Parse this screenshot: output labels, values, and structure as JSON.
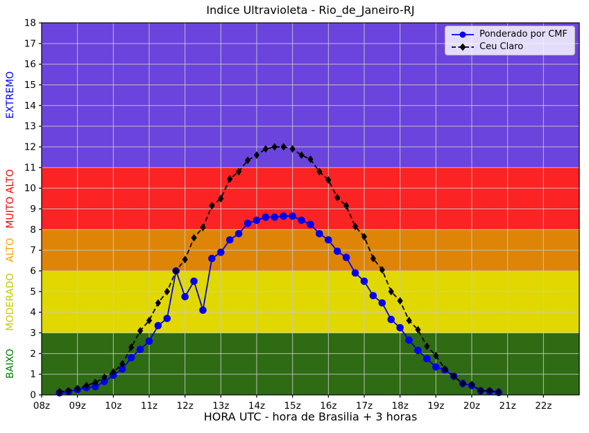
{
  "title": "Indice Ultravioleta - Rio_de_Janeiro-RJ",
  "xlabel": "HORA UTC - hora de Brasilia + 3 horas",
  "legend": {
    "items": [
      {
        "label": "Ponderado por CMF",
        "color": "#0000ee",
        "marker": "circle",
        "linestyle": "solid"
      },
      {
        "label": "Ceu Claro",
        "color": "#000000",
        "marker": "diamond",
        "linestyle": "dashed"
      }
    ]
  },
  "bands": [
    {
      "label": "BAIXO",
      "from": 0,
      "to": 3,
      "fill": "#2e6b13",
      "label_color": "#008000"
    },
    {
      "label": "MODERADO",
      "from": 3,
      "to": 6,
      "fill": "#e0d800",
      "label_color": "#c8c800"
    },
    {
      "label": "ALTO",
      "from": 6,
      "to": 8,
      "fill": "#de8508",
      "label_color": "#ff9e00"
    },
    {
      "label": "MUITO ALTO",
      "from": 8,
      "to": 11,
      "fill": "#fb2323",
      "label_color": "#ff0000"
    },
    {
      "label": "EXTREMO",
      "from": 11,
      "to": 18,
      "fill": "#6b44dd",
      "label_color": "#0000ff"
    }
  ],
  "grid_color": "#c9c9c9",
  "chart_data": {
    "type": "line",
    "title": "Indice Ultravioleta - Rio_de_Janeiro-RJ",
    "xlabel": "HORA UTC - hora de Brasilia + 3 horas",
    "ylabel": "",
    "xlim": [
      8,
      23
    ],
    "ylim": [
      0,
      18
    ],
    "grid": true,
    "legend_position": "upper right",
    "x_tick_labels": [
      "08z",
      "09z",
      "10z",
      "11z",
      "12z",
      "13z",
      "14z",
      "15z",
      "16z",
      "17z",
      "18z",
      "19z",
      "20z",
      "21z",
      "22z"
    ],
    "x_tick_hours": [
      8,
      9,
      10,
      11,
      12,
      13,
      14,
      15,
      16,
      17,
      18,
      19,
      20,
      21,
      22
    ],
    "y_ticks": [
      0,
      1,
      2,
      3,
      4,
      5,
      6,
      7,
      8,
      9,
      10,
      11,
      12,
      13,
      14,
      15,
      16,
      17,
      18
    ],
    "x": [
      8.5,
      8.75,
      9.0,
      9.25,
      9.5,
      9.75,
      10.0,
      10.25,
      10.5,
      10.75,
      11.0,
      11.25,
      11.5,
      11.75,
      12.0,
      12.25,
      12.5,
      12.75,
      13.0,
      13.25,
      13.5,
      13.75,
      14.0,
      14.25,
      14.5,
      14.75,
      15.0,
      15.25,
      15.5,
      15.75,
      16.0,
      16.25,
      16.5,
      16.75,
      17.0,
      17.25,
      17.5,
      17.75,
      18.0,
      18.25,
      18.5,
      18.75,
      19.0,
      19.25,
      19.5,
      19.75,
      20.0,
      20.25,
      20.5,
      20.75
    ],
    "series": [
      {
        "name": "Ponderado por CMF",
        "color": "#0000ee",
        "marker": "circle",
        "linestyle": "solid",
        "values": [
          0.1,
          0.15,
          0.25,
          0.35,
          0.4,
          0.65,
          0.95,
          1.25,
          1.8,
          2.2,
          2.6,
          3.35,
          3.7,
          6.0,
          4.75,
          5.5,
          4.1,
          6.6,
          6.9,
          7.5,
          7.8,
          8.3,
          8.45,
          8.6,
          8.6,
          8.65,
          8.65,
          8.45,
          8.25,
          7.8,
          7.5,
          6.95,
          6.65,
          5.9,
          5.5,
          4.8,
          4.45,
          3.65,
          3.25,
          2.65,
          2.15,
          1.75,
          1.35,
          1.2,
          0.9,
          0.55,
          0.45,
          0.2,
          0.17,
          0.12
        ]
      },
      {
        "name": "Ceu Claro",
        "color": "#000000",
        "marker": "diamond",
        "linestyle": "dashed",
        "values": [
          0.15,
          0.2,
          0.3,
          0.45,
          0.6,
          0.85,
          1.1,
          1.5,
          2.3,
          3.1,
          3.6,
          4.45,
          5.0,
          6.0,
          6.55,
          7.6,
          8.1,
          9.15,
          9.5,
          10.45,
          10.8,
          11.35,
          11.6,
          11.9,
          12.0,
          12.0,
          11.9,
          11.6,
          11.4,
          10.8,
          10.4,
          9.55,
          9.15,
          8.15,
          7.65,
          6.6,
          6.05,
          5.0,
          4.55,
          3.6,
          3.15,
          2.35,
          1.9,
          1.25,
          0.9,
          0.55,
          0.5,
          0.2,
          0.2,
          0.15
        ]
      }
    ]
  }
}
